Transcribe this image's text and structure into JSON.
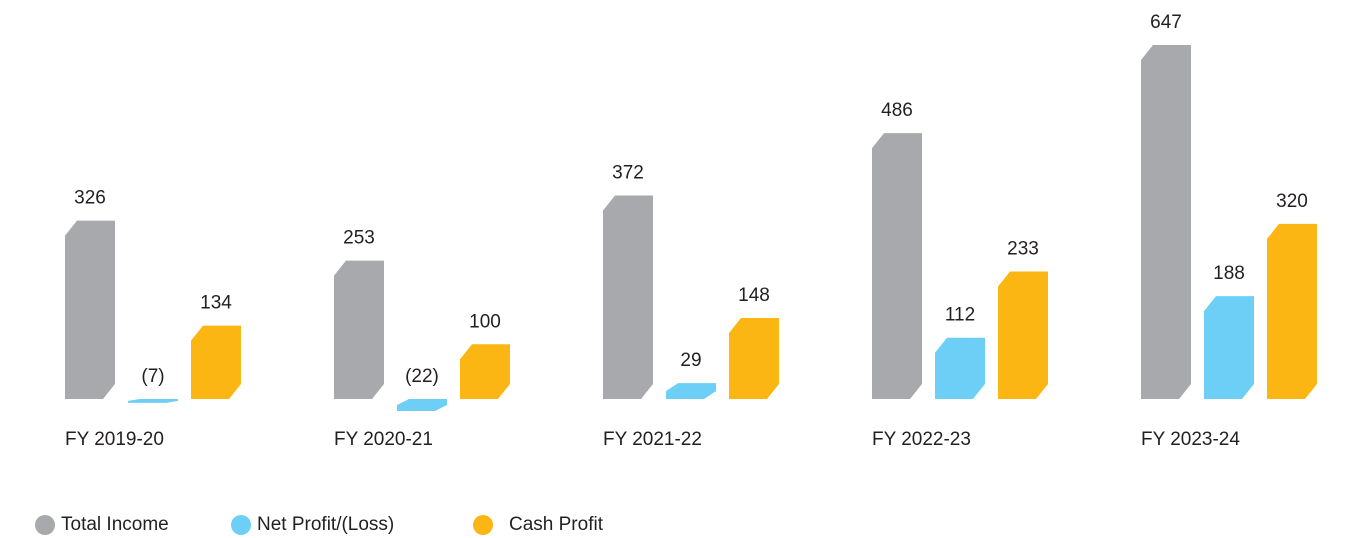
{
  "chart_data": {
    "type": "bar",
    "categories": [
      "FY 2019-20",
      "FY 2020-21",
      "FY 2021-22",
      "FY 2022-23",
      "FY 2023-24"
    ],
    "series": [
      {
        "name": "Total Income",
        "color": "#a7a9ac",
        "values": [
          326,
          253,
          372,
          486,
          647
        ]
      },
      {
        "name": "Net Profit/(Loss)",
        "color": "#6dcff6",
        "values": [
          -7,
          -22,
          29,
          112,
          188
        ],
        "value_labels": [
          "(7)",
          "(22)",
          "29",
          "112",
          "188"
        ]
      },
      {
        "name": "Cash Profit",
        "color": "#fbb614",
        "values": [
          134,
          100,
          148,
          233,
          320
        ]
      }
    ]
  }
}
